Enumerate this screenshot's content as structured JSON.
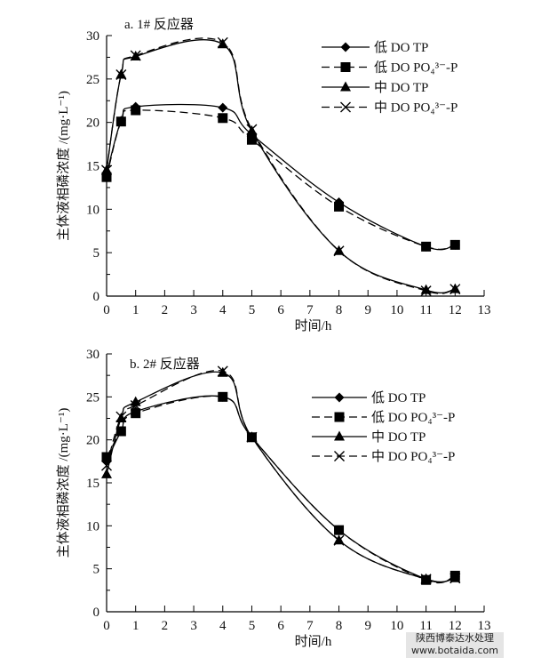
{
  "chart_data": [
    {
      "type": "line",
      "title": "a. 1# 反应器",
      "xlabel": "时间/h",
      "ylabel": "主体液相磷浓度 /(mg·L⁻¹)",
      "xlim": [
        0,
        13
      ],
      "ylim": [
        0,
        30
      ],
      "xticks": [
        0,
        1,
        2,
        3,
        4,
        5,
        6,
        7,
        8,
        9,
        10,
        11,
        12,
        13
      ],
      "yticks": [
        0,
        5,
        10,
        15,
        20,
        25,
        30
      ],
      "legend_position": "top-right",
      "x": [
        0,
        0.5,
        1,
        4,
        5,
        8,
        11,
        12
      ],
      "series": [
        {
          "name": "低 DO TP",
          "marker": "diamond",
          "dash": false,
          "values": [
            14.0,
            20.2,
            21.8,
            21.7,
            18.6,
            10.8,
            5.7,
            5.9
          ]
        },
        {
          "name": "低 DO PO₄³⁻-P",
          "marker": "square",
          "dash": true,
          "values": [
            13.7,
            20.1,
            21.4,
            20.5,
            18.0,
            10.3,
            5.7,
            5.9
          ]
        },
        {
          "name": "中 DO TP",
          "marker": "triangle",
          "dash": false,
          "values": [
            14.5,
            25.5,
            27.6,
            29.0,
            19.0,
            5.2,
            0.7,
            0.8
          ]
        },
        {
          "name": "中 DO PO₄³⁻-P",
          "marker": "x",
          "dash": true,
          "values": [
            14.5,
            25.5,
            27.7,
            29.2,
            19.2,
            5.2,
            0.6,
            0.8
          ]
        }
      ]
    },
    {
      "type": "line",
      "title": "b. 2# 反应器",
      "xlabel": "时间/h",
      "ylabel": "主体液相磷浓度 /(mg·L⁻¹)",
      "xlim": [
        0,
        13
      ],
      "ylim": [
        0,
        30
      ],
      "xticks": [
        0,
        1,
        2,
        3,
        4,
        5,
        6,
        7,
        8,
        9,
        10,
        11,
        12,
        13
      ],
      "yticks": [
        0,
        5,
        10,
        15,
        20,
        25,
        30
      ],
      "legend_position": "right",
      "x": [
        0,
        0.5,
        1,
        4,
        5,
        8,
        11,
        12
      ],
      "series": [
        {
          "name": "低 DO TP",
          "marker": "diamond",
          "dash": false,
          "values": [
            17.5,
            21.0,
            23.3,
            25.0,
            20.3,
            9.5,
            3.8,
            4.1
          ]
        },
        {
          "name": "低 DO PO₄³⁻-P",
          "marker": "square",
          "dash": true,
          "values": [
            18.0,
            21.0,
            23.1,
            25.0,
            20.3,
            9.5,
            3.7,
            4.2
          ]
        },
        {
          "name": "中 DO TP",
          "marker": "triangle",
          "dash": false,
          "values": [
            16.0,
            22.5,
            24.4,
            27.8,
            20.3,
            8.3,
            3.8,
            3.9
          ]
        },
        {
          "name": "中 DO PO₄³⁻-P",
          "marker": "x",
          "dash": true,
          "values": [
            17.0,
            22.7,
            24.0,
            28.0,
            20.3,
            8.3,
            3.8,
            3.9
          ]
        }
      ]
    }
  ],
  "watermark": {
    "line1": "陕西博泰达水处理",
    "line2": "www.botaida.com"
  }
}
